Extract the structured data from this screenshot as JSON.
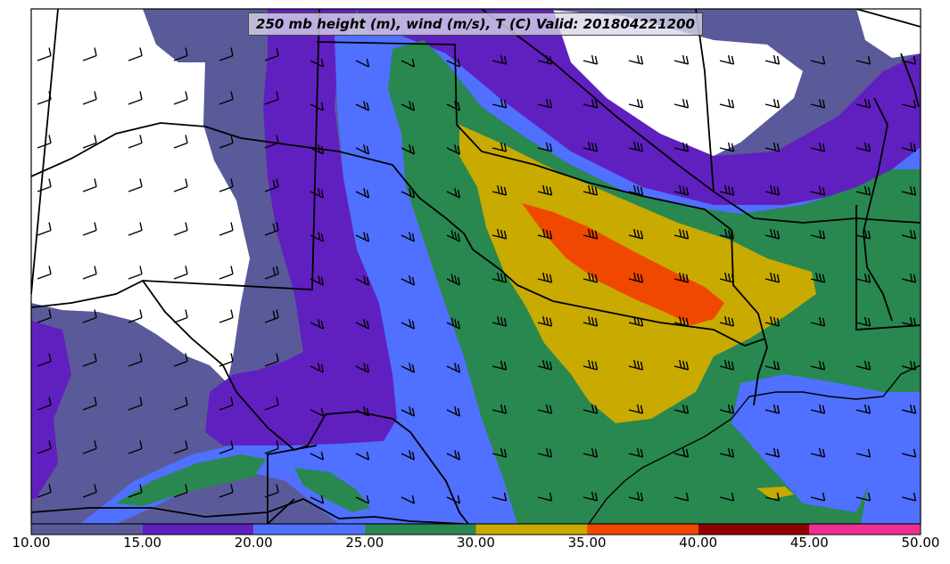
{
  "title": "250 mb height (m), wind (m/s), T (C) Valid: 201804221200",
  "colorbar": {
    "ticks": [
      "10.00",
      "15.00",
      "20.00",
      "25.00",
      "30.00",
      "35.00",
      "40.00",
      "45.00",
      "50.00"
    ],
    "bins": [
      {
        "min": 10,
        "max": 15,
        "color": "#5a5a9a"
      },
      {
        "min": 15,
        "max": 20,
        "color": "#6020c0"
      },
      {
        "min": 20,
        "max": 25,
        "color": "#5070ff"
      },
      {
        "min": 25,
        "max": 30,
        "color": "#288850"
      },
      {
        "min": 30,
        "max": 35,
        "color": "#c8aa00"
      },
      {
        "min": 35,
        "max": 40,
        "color": "#f04800"
      },
      {
        "min": 40,
        "max": 45,
        "color": "#900000"
      },
      {
        "min": 45,
        "max": 50,
        "color": "#f03090"
      }
    ]
  },
  "colors": {
    "background": "#ffffff",
    "boundary": "#000000",
    "barb": "#000000"
  }
}
